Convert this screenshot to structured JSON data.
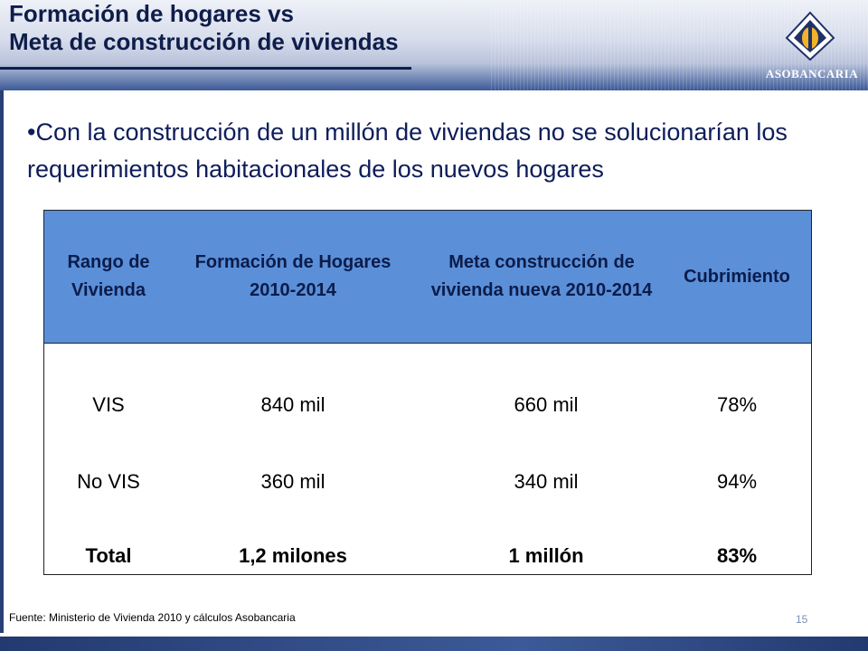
{
  "header": {
    "title_line1": "Formación de hogares vs",
    "title_line2": "Meta de construcción de viviendas",
    "logo_text": "ASOBANCARIA",
    "logo_icon": "asobancaria-diamond-logo-icon"
  },
  "bullet": {
    "text": "•Con la construcción de un millón de viviendas no se solucionarían los requerimientos habitacionales de los nuevos hogares"
  },
  "table": {
    "headers": [
      "Rango de Vivienda",
      "Formación de Hogares 2010-2014",
      "Meta construcción de vivienda nueva 2010-2014",
      "Cubrimiento"
    ],
    "rows": [
      [
        "VIS",
        "840 mil",
        "660 mil",
        "78%"
      ],
      [
        "No VIS",
        "360 mil",
        "340 mil",
        "94%"
      ],
      [
        "Total",
        "1,2 milones",
        "1 millón",
        "83%"
      ]
    ]
  },
  "footer": {
    "source": "Fuente: Ministerio de Vivienda 2010 y cálculos Asobancaria",
    "page_number": "15"
  },
  "colors": {
    "header_fill": "#5b8fd8",
    "title_text": "#0e1d4a",
    "bullet_text": "#0e1d5a",
    "band_blue": "#3c5a98"
  }
}
